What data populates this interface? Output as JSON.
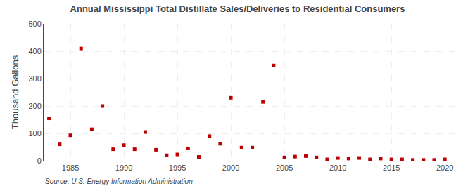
{
  "chart_data": {
    "type": "scatter",
    "title": "Annual Mississippi Total Distillate Sales/Deliveries to Residential Consumers",
    "ylabel": "Thousand Gallons",
    "annotations": [
      "Source: U.S. Energy Information Administration"
    ],
    "x": [
      1983,
      1984,
      1985,
      1986,
      1987,
      1988,
      1989,
      1990,
      1991,
      1992,
      1993,
      1994,
      1995,
      1996,
      1997,
      1998,
      1999,
      2000,
      2001,
      2002,
      2003,
      2004,
      2005,
      2006,
      2007,
      2008,
      2009,
      2010,
      2011,
      2012,
      2013,
      2014,
      2015,
      2016,
      2017,
      2018,
      2019,
      2020
    ],
    "values": [
      155,
      60,
      93,
      410,
      115,
      200,
      42,
      57,
      42,
      105,
      40,
      20,
      23,
      45,
      14,
      90,
      62,
      230,
      48,
      48,
      215,
      348,
      12,
      15,
      17,
      12,
      5,
      10,
      8,
      10,
      5,
      8,
      5,
      5,
      3,
      3,
      3,
      5
    ],
    "color": "#bb0000",
    "marker": "square",
    "xlim": [
      1982.5,
      2021.5
    ],
    "ylim": [
      0,
      500
    ],
    "xticks": [
      1985,
      1990,
      1995,
      2000,
      2005,
      2010,
      2015,
      2020
    ],
    "yticks": [
      0,
      100,
      200,
      300,
      400,
      500
    ],
    "grid": true
  }
}
